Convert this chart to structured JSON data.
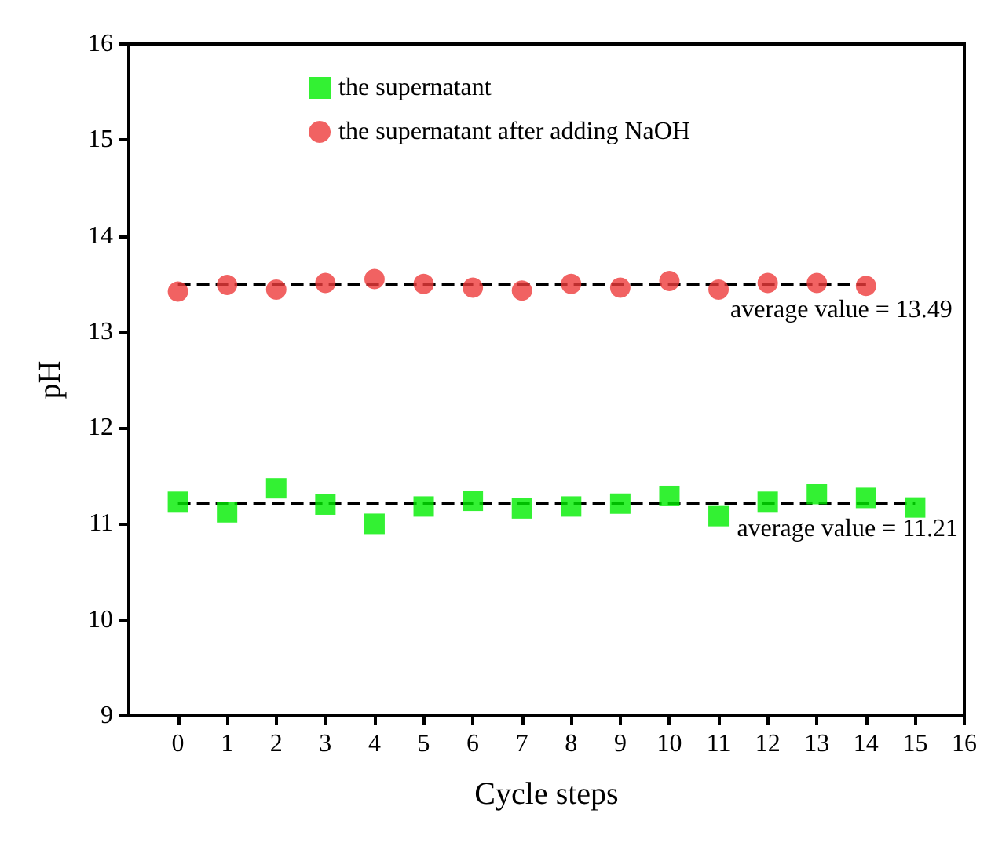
{
  "chart_data": {
    "type": "scatter",
    "xlabel": "Cycle steps",
    "ylabel": "pH",
    "xlim": [
      -1,
      16
    ],
    "xticks": [
      0,
      1,
      2,
      3,
      4,
      5,
      6,
      7,
      8,
      9,
      10,
      11,
      12,
      13,
      14,
      15,
      16
    ],
    "ylim": [
      9,
      16
    ],
    "yticks": [
      9,
      10,
      11,
      12,
      13,
      14,
      15,
      16
    ],
    "series": [
      {
        "name": "the supernatant",
        "color": "#00ee00",
        "marker": "square",
        "x": [
          0,
          1,
          2,
          3,
          4,
          5,
          6,
          7,
          8,
          9,
          10,
          11,
          12,
          13,
          14,
          15
        ],
        "values": [
          11.23,
          11.12,
          11.37,
          11.2,
          11.0,
          11.18,
          11.24,
          11.16,
          11.18,
          11.21,
          11.29,
          11.08,
          11.23,
          11.31,
          11.27,
          11.17
        ]
      },
      {
        "name": "the supernatant after adding NaOH",
        "color": "#ee3b3b",
        "marker": "circle",
        "x": [
          0,
          1,
          2,
          3,
          4,
          5,
          6,
          7,
          8,
          9,
          10,
          11,
          12,
          13,
          14
        ],
        "values": [
          13.42,
          13.49,
          13.44,
          13.51,
          13.55,
          13.5,
          13.46,
          13.43,
          13.5,
          13.46,
          13.53,
          13.44,
          13.51,
          13.51,
          13.48
        ]
      },
      {
        "type": "line",
        "color": "#000000",
        "line_style": "dashed",
        "marker": "none",
        "x": [
          0,
          15
        ],
        "values": [
          11.21,
          11.21
        ]
      },
      {
        "type": "line",
        "color": "#000000",
        "line_style": "dashed",
        "marker": "none",
        "x": [
          0,
          14
        ],
        "values": [
          13.49,
          13.49
        ]
      }
    ],
    "annotations": [
      {
        "text": "average value = 13.49",
        "x": 14,
        "y": 13.49
      },
      {
        "text": "average value = 11.21",
        "x": 15,
        "y": 11.21
      }
    ],
    "legend": "top",
    "grid": false
  }
}
